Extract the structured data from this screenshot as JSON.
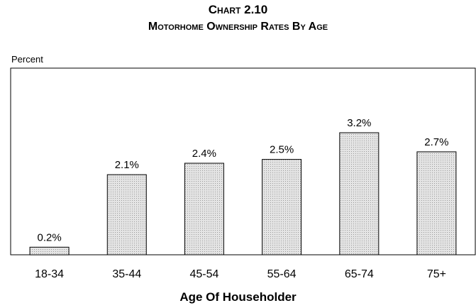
{
  "chart_data": {
    "type": "bar",
    "title": "Chart 2.10",
    "subtitle": "Motorhome Ownership Rates By Age",
    "ylabel": "Percent",
    "xlabel": "Age Of Householder",
    "categories": [
      "18-34",
      "35-44",
      "45-54",
      "55-64",
      "65-74",
      "75+"
    ],
    "values": [
      0.2,
      2.1,
      2.4,
      2.5,
      3.2,
      2.7
    ],
    "data_labels": [
      "0.2%",
      "2.1%",
      "2.4%",
      "2.5%",
      "3.2%",
      "2.7%"
    ],
    "ylim": [
      0,
      3.6
    ],
    "grid": false,
    "legend": "none",
    "bar_color": "#d9d9d9",
    "bar_border_color": "#000000"
  }
}
